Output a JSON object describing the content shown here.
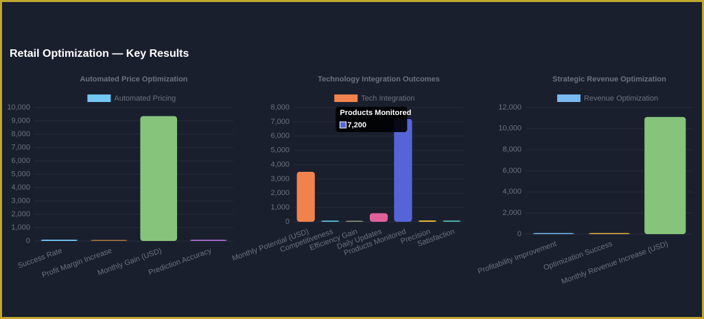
{
  "title": "Retail Optimization — Key Results",
  "chart_data": [
    {
      "type": "bar",
      "title": "Automated Price Optimization",
      "categories": [
        "Success Rate",
        "Profit Margin Increase",
        "Monthly Gain (USD)",
        "Prediction Accuracy"
      ],
      "series": [
        {
          "name": "Automated Pricing",
          "color": "#72c6f3",
          "colors": [
            "#72c6f3",
            "#b07a3c",
            "#86c47c",
            "#b06fd8"
          ],
          "values": [
            95,
            25,
            9350,
            92
          ]
        }
      ],
      "ylim": [
        0,
        10000
      ],
      "yticks": [
        0,
        {
          "value": 1000,
          "label": "1,000"
        },
        {
          "value": 2000,
          "label": "2,000"
        },
        {
          "value": 3000,
          "label": "3,000"
        },
        {
          "value": 4000,
          "label": "4,000"
        },
        {
          "value": 5000,
          "label": "5,000"
        },
        {
          "value": 6000,
          "label": "6,000"
        },
        {
          "value": 7000,
          "label": "7,000"
        },
        {
          "value": 8000,
          "label": "8,000"
        },
        {
          "value": 9000,
          "label": "9,000"
        },
        {
          "value": 10000,
          "label": "10,000"
        }
      ],
      "grid": true
    },
    {
      "type": "bar",
      "title": "Technology Integration Outcomes",
      "categories": [
        "Monthly Potential (USD)",
        "Competitiveness",
        "Efficiency Gain",
        "Daily Updates",
        "Products Monitored",
        "Precision",
        "Satisfaction"
      ],
      "series": [
        {
          "name": "Tech Integration",
          "color": "#f0834d",
          "colors": [
            "#f0834d",
            "#5bc4e0",
            "#9a9a78",
            "#e0619a",
            "#5565d8",
            "#e6b43a",
            "#4fb8b0"
          ],
          "values": [
            3500,
            85,
            40,
            600,
            7200,
            95,
            90
          ]
        }
      ],
      "ylim": [
        0,
        8000
      ],
      "yticks": [
        0,
        {
          "value": 1000,
          "label": "1,000"
        },
        {
          "value": 2000,
          "label": "2,000"
        },
        {
          "value": 3000,
          "label": "3,000"
        },
        {
          "value": 4000,
          "label": "4,000"
        },
        {
          "value": 5000,
          "label": "5,000"
        },
        {
          "value": 6000,
          "label": "6,000"
        },
        {
          "value": 7000,
          "label": "7,000"
        },
        {
          "value": 8000,
          "label": "8,000"
        }
      ],
      "grid": true,
      "tooltip": {
        "title": "Products Monitored",
        "label": "7,200"
      }
    },
    {
      "type": "bar",
      "title": "Strategic Revenue Optimization",
      "categories": [
        "Profitability Improvement",
        "Optimization Success",
        "Monthly Revenue Increase (USD)"
      ],
      "series": [
        {
          "name": "Revenue Optimization",
          "color": "#7ab8f0",
          "colors": [
            "#7ab8f0",
            "#e6b43a",
            "#86c47c"
          ],
          "values": [
            25,
            92,
            11100
          ]
        }
      ],
      "ylim": [
        0,
        12000
      ],
      "yticks": [
        0,
        {
          "value": 2000,
          "label": "2,000"
        },
        {
          "value": 4000,
          "label": "4,000"
        },
        {
          "value": 6000,
          "label": "6,000"
        },
        {
          "value": 8000,
          "label": "8,000"
        },
        {
          "value": 10000,
          "label": "10,000"
        },
        {
          "value": 12000,
          "label": "12,000"
        }
      ],
      "grid": true
    }
  ]
}
